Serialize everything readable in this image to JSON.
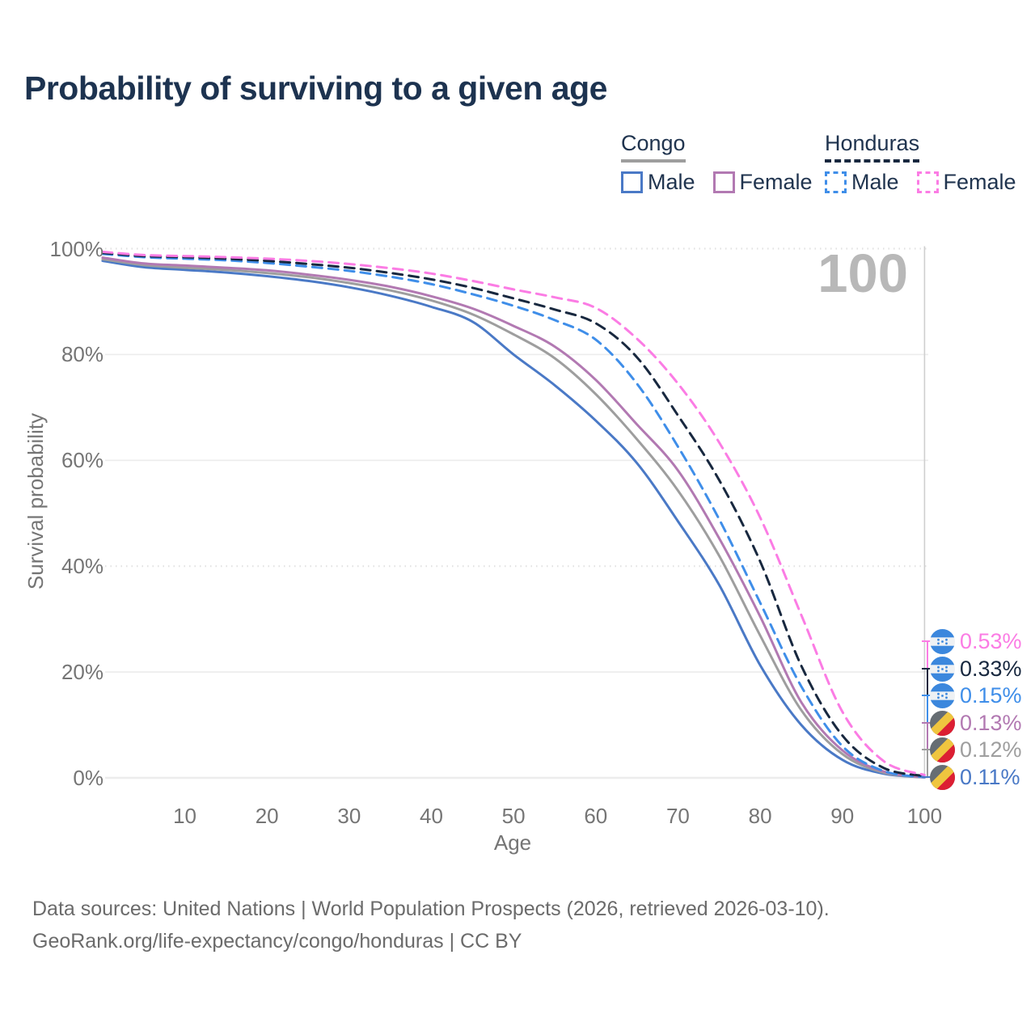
{
  "title": "Probability of surviving to a given age",
  "hover": {
    "age_label": "100"
  },
  "legend": {
    "groups": [
      {
        "name": "Congo",
        "line_style": "solid",
        "underline_color": "#9e9e9e",
        "items": [
          {
            "label": "Male",
            "color": "#4a79c6"
          },
          {
            "label": "Female",
            "color": "#b279b2"
          }
        ]
      },
      {
        "name": "Honduras",
        "line_style": "dashed",
        "underline_color": "#18283f",
        "items": [
          {
            "label": "Male",
            "color": "#3f8ee9"
          },
          {
            "label": "Female",
            "color": "#fb7ce4"
          }
        ]
      }
    ]
  },
  "axes": {
    "y_title": "Survival probability",
    "x_title": "Age",
    "y_ticks": [
      {
        "label": "100%",
        "value": 100,
        "grid": "ticked"
      },
      {
        "label": "80%",
        "value": 80,
        "grid": "solid"
      },
      {
        "label": "60%",
        "value": 60,
        "grid": "solid"
      },
      {
        "label": "40%",
        "value": 40,
        "grid": "ticked"
      },
      {
        "label": "20%",
        "value": 20,
        "grid": "solid"
      },
      {
        "label": "0%",
        "value": 0,
        "grid": "solid"
      }
    ],
    "x_ticks": [
      10,
      20,
      30,
      40,
      50,
      60,
      70,
      80,
      90,
      100
    ]
  },
  "chart_data": {
    "type": "line",
    "title": "Probability of surviving to a given age",
    "xlabel": "Age",
    "ylabel": "Survival probability",
    "xlim": [
      0,
      100
    ],
    "ylim": [
      0,
      100
    ],
    "grid": "on",
    "highlighted_age": 100,
    "x": [
      0,
      5,
      10,
      15,
      20,
      25,
      30,
      35,
      40,
      45,
      50,
      55,
      60,
      65,
      70,
      75,
      80,
      85,
      90,
      95,
      100
    ],
    "series": [
      {
        "name": "Honduras Female",
        "country": "Honduras",
        "group": "Female",
        "style": "dashed",
        "color": "#fb7ce4",
        "end_value_pct": "0.53%",
        "values": [
          99.4,
          98.8,
          98.6,
          98.4,
          98.1,
          97.7,
          97.1,
          96.3,
          95.3,
          93.9,
          92.3,
          90.8,
          88.8,
          83.0,
          74.5,
          63.4,
          49.2,
          30.8,
          12.5,
          3.2,
          0.53
        ]
      },
      {
        "name": "Honduras (all)",
        "country": "Honduras",
        "group": "All",
        "style": "dashed",
        "color": "#18283f",
        "end_value_pct": "0.33%",
        "values": [
          99.2,
          98.6,
          98.4,
          98.1,
          97.7,
          97.1,
          96.4,
          95.4,
          94.2,
          92.6,
          90.6,
          88.5,
          85.9,
          79.5,
          68.5,
          56.3,
          40.9,
          21.2,
          8.0,
          1.9,
          0.33
        ]
      },
      {
        "name": "Honduras Male",
        "country": "Honduras",
        "group": "Male",
        "style": "dashed",
        "color": "#3f8ee9",
        "end_value_pct": "0.15%",
        "values": [
          99.0,
          98.4,
          98.1,
          97.8,
          97.3,
          96.6,
          95.8,
          94.7,
          93.3,
          91.4,
          89.2,
          86.5,
          82.8,
          74.5,
          62.6,
          48.9,
          33.1,
          17.3,
          6.0,
          1.3,
          0.15
        ]
      },
      {
        "name": "Congo Female",
        "country": "Congo",
        "group": "Female",
        "style": "solid",
        "color": "#b279b2",
        "end_value_pct": "0.13%",
        "values": [
          98.3,
          97.2,
          96.8,
          96.4,
          95.9,
          95.1,
          94.1,
          92.8,
          91.0,
          88.7,
          85.4,
          81.5,
          75.2,
          66.8,
          58.1,
          45.3,
          30.5,
          14.3,
          5.2,
          1.2,
          0.13
        ]
      },
      {
        "name": "Congo (all)",
        "country": "Congo",
        "group": "All",
        "style": "solid",
        "color": "#9e9e9e",
        "end_value_pct": "0.12%",
        "values": [
          98.0,
          96.9,
          96.4,
          96.0,
          95.4,
          94.6,
          93.5,
          92.1,
          90.2,
          87.6,
          83.8,
          79.3,
          72.5,
          64.0,
          54.3,
          42.0,
          26.9,
          12.8,
          4.5,
          1.0,
          0.12
        ]
      },
      {
        "name": "Congo Male",
        "country": "Congo",
        "group": "Male",
        "style": "solid",
        "color": "#4a79c6",
        "end_value_pct": "0.11%",
        "values": [
          97.7,
          96.5,
          96.0,
          95.5,
          94.8,
          93.9,
          92.7,
          91.1,
          89.0,
          86.2,
          80.0,
          74.2,
          67.5,
          59.5,
          48.5,
          36.5,
          21.3,
          10.0,
          3.4,
          0.8,
          0.11
        ]
      }
    ]
  },
  "end_labels": [
    {
      "value": "0.53%",
      "color": "#fb7ce4",
      "flag": "honduras"
    },
    {
      "value": "0.33%",
      "color": "#18283f",
      "flag": "honduras"
    },
    {
      "value": "0.15%",
      "color": "#3f8ee9",
      "flag": "honduras"
    },
    {
      "value": "0.13%",
      "color": "#b279b2",
      "flag": "congo"
    },
    {
      "value": "0.12%",
      "color": "#9e9e9e",
      "flag": "congo"
    },
    {
      "value": "0.11%",
      "color": "#4a79c6",
      "flag": "congo"
    }
  ],
  "footer": {
    "line1": "Data sources: United Nations | World Population Prospects (2026, retrieved 2026-03-10).",
    "line2": "GeoRank.org/life-expectancy/congo/honduras | CC BY"
  }
}
